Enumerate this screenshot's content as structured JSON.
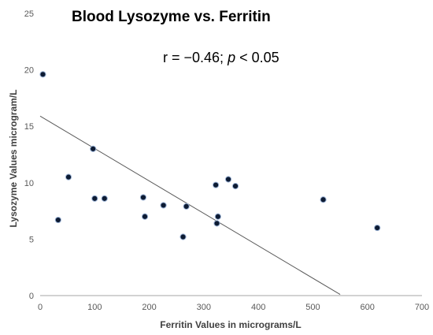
{
  "chart_data": {
    "type": "scatter",
    "title": "Blood Lysozyme vs. Ferritin",
    "annotation": {
      "prefix": "r = −0.46; ",
      "italic": "p",
      "suffix": " < 0.05"
    },
    "xlabel": "Ferritin Values in micrograms/L",
    "ylabel": "Lysozyme Values microgram/L",
    "xlim": [
      0,
      700
    ],
    "ylim": [
      0,
      25
    ],
    "xticks": [
      "0",
      "100",
      "200",
      "300",
      "400",
      "500",
      "600",
      "700"
    ],
    "yticks": [
      "0",
      "5",
      "10",
      "15",
      "20",
      "25"
    ],
    "grid": false,
    "points": [
      {
        "x": 5,
        "y": 19.6
      },
      {
        "x": 33,
        "y": 6.7
      },
      {
        "x": 52,
        "y": 10.5
      },
      {
        "x": 97,
        "y": 13.0
      },
      {
        "x": 100,
        "y": 8.6
      },
      {
        "x": 118,
        "y": 8.6
      },
      {
        "x": 189,
        "y": 8.7
      },
      {
        "x": 192,
        "y": 7.0
      },
      {
        "x": 226,
        "y": 8.0
      },
      {
        "x": 262,
        "y": 5.2
      },
      {
        "x": 268,
        "y": 7.9
      },
      {
        "x": 322,
        "y": 9.8
      },
      {
        "x": 324,
        "y": 6.4
      },
      {
        "x": 326,
        "y": 7.0
      },
      {
        "x": 345,
        "y": 10.3
      },
      {
        "x": 358,
        "y": 9.7
      },
      {
        "x": 519,
        "y": 8.5
      },
      {
        "x": 618,
        "y": 6.0
      }
    ],
    "trendline": {
      "type": "linear",
      "start": {
        "x": 0,
        "y": 15.9
      },
      "end": {
        "x": 550,
        "y": 0.1
      }
    },
    "colors": {
      "marker_fill": "#0d1b33",
      "marker_stroke": "#9db4d6",
      "trendline": "#595959",
      "axis": "#a6a6a6"
    }
  }
}
